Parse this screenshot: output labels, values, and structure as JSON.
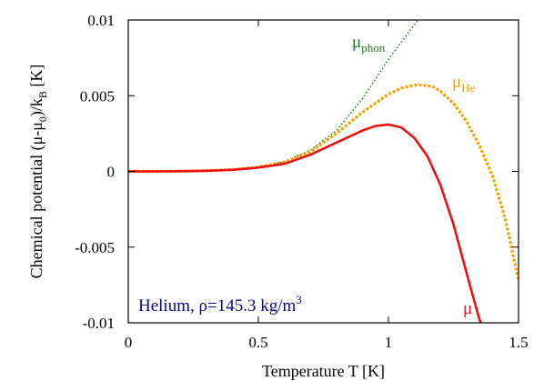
{
  "chart_data": {
    "type": "line",
    "xlabel": "Temperature T [K]",
    "ylabel_parts": {
      "main": "Chemical potential (μ-μ",
      "sub0": "0",
      "mid": ")/k",
      "subB": "B",
      "tail": " [K]"
    },
    "xlim": [
      0,
      1.5
    ],
    "ylim": [
      -0.01,
      0.01
    ],
    "x_ticks": [
      0,
      0.5,
      1,
      1.5
    ],
    "x_tick_labels": [
      "0",
      "0.5",
      "1",
      "1.5"
    ],
    "y_ticks": [
      0.01,
      0.005,
      0,
      -0.005,
      -0.01
    ],
    "y_tick_labels": [
      "0.01",
      "0.005",
      "0",
      "-0.005",
      "-0.01"
    ],
    "grid": false,
    "annotation": {
      "prefix": "Helium, ρ=145.3 kg/m",
      "sup": "3",
      "color": "#0a0a80"
    },
    "series": [
      {
        "name": "μ_phon",
        "label_main": "μ",
        "label_sub": "phon",
        "color": "#1a7a1a",
        "style": "dotted",
        "x": [
          0,
          0.1,
          0.2,
          0.3,
          0.4,
          0.5,
          0.6,
          0.7,
          0.8,
          0.9,
          1.0,
          1.1,
          1.12
        ],
        "y": [
          0,
          0,
          1e-05,
          4e-05,
          0.00012,
          0.00028,
          0.00065,
          0.0014,
          0.0027,
          0.0048,
          0.0074,
          0.0097,
          0.0101
        ]
      },
      {
        "name": "μ_He",
        "label_main": "μ",
        "label_sub": "He",
        "color": "#f2a100",
        "style": "dashed",
        "x": [
          0,
          0.1,
          0.2,
          0.3,
          0.4,
          0.5,
          0.6,
          0.7,
          0.8,
          0.9,
          1.0,
          1.05,
          1.1,
          1.13,
          1.17,
          1.2,
          1.25,
          1.3,
          1.35,
          1.4,
          1.45,
          1.5
        ],
        "y": [
          0,
          0,
          1e-05,
          4e-05,
          0.00012,
          0.00028,
          0.00062,
          0.0013,
          0.0025,
          0.0039,
          0.0051,
          0.0055,
          0.0057,
          0.0057,
          0.0056,
          0.0053,
          0.0045,
          0.0033,
          0.0017,
          -0.0003,
          -0.0032,
          -0.0072
        ]
      },
      {
        "name": "μ",
        "label_main": "μ",
        "label_sub": "",
        "color": "#ee1111",
        "style": "solid",
        "x": [
          0,
          0.1,
          0.2,
          0.3,
          0.4,
          0.5,
          0.6,
          0.7,
          0.8,
          0.9,
          0.95,
          1.0,
          1.05,
          1.1,
          1.15,
          1.2,
          1.25,
          1.3,
          1.35,
          1.38
        ],
        "y": [
          0,
          0,
          1e-05,
          4e-05,
          0.0001,
          0.00025,
          0.0005,
          0.0011,
          0.0019,
          0.0027,
          0.003,
          0.0031,
          0.0029,
          0.0022,
          0.001,
          -0.0009,
          -0.0035,
          -0.0067,
          -0.0098,
          -0.0107
        ]
      }
    ]
  }
}
